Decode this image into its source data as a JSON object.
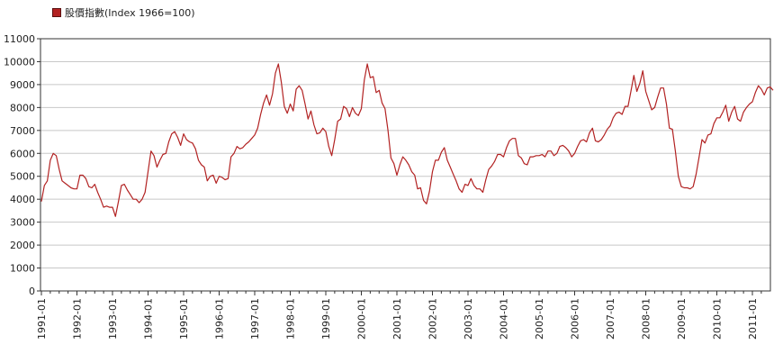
{
  "chart_data": {
    "type": "line",
    "legend": {
      "label": "股價指數(Index 1966=100)",
      "color": "#b22222",
      "position": "top-left"
    },
    "title": "",
    "xlabel": "",
    "ylabel": "",
    "ylim": [
      0,
      11000
    ],
    "y_ticks": [
      0,
      1000,
      2000,
      3000,
      4000,
      5000,
      6000,
      7000,
      8000,
      9000,
      10000,
      11000
    ],
    "x_range": [
      "1991-01",
      "2011-04"
    ],
    "x_tick_labels": [
      "1991-01",
      "1992-01",
      "1993-01",
      "1994-01",
      "1995-01",
      "1996-01",
      "1997-01",
      "1998-01",
      "1999-01",
      "2000-01",
      "2001-01",
      "2002-01",
      "2003-01",
      "2004-01",
      "2005-01",
      "2006-01",
      "2007-01",
      "2008-01",
      "2009-01",
      "2010-01",
      "2011-01"
    ],
    "grid": {
      "horizontal": true,
      "vertical": false
    },
    "series": [
      {
        "name": "股價指數(Index 1966=100)",
        "color": "#b22222",
        "points": [
          [
            "1991-01",
            3900
          ],
          [
            "1991-02",
            4600
          ],
          [
            "1991-03",
            4800
          ],
          [
            "1991-04",
            5700
          ],
          [
            "1991-05",
            6000
          ],
          [
            "1991-06",
            5900
          ],
          [
            "1991-07",
            5300
          ],
          [
            "1991-08",
            4800
          ],
          [
            "1991-09",
            4700
          ],
          [
            "1991-10",
            4600
          ],
          [
            "1991-11",
            4500
          ],
          [
            "1991-12",
            4450
          ],
          [
            "1992-01",
            4450
          ],
          [
            "1992-02",
            5050
          ],
          [
            "1992-03",
            5050
          ],
          [
            "1992-04",
            4900
          ],
          [
            "1992-05",
            4550
          ],
          [
            "1992-06",
            4500
          ],
          [
            "1992-07",
            4650
          ],
          [
            "1992-08",
            4300
          ],
          [
            "1992-09",
            4000
          ],
          [
            "1992-10",
            3650
          ],
          [
            "1992-11",
            3700
          ],
          [
            "1992-12",
            3650
          ],
          [
            "1993-01",
            3650
          ],
          [
            "1993-02",
            3250
          ],
          [
            "1993-03",
            3900
          ],
          [
            "1993-04",
            4600
          ],
          [
            "1993-05",
            4650
          ],
          [
            "1993-06",
            4400
          ],
          [
            "1993-07",
            4200
          ],
          [
            "1993-08",
            4000
          ],
          [
            "1993-09",
            4000
          ],
          [
            "1993-10",
            3850
          ],
          [
            "1993-11",
            4000
          ],
          [
            "1993-12",
            4300
          ],
          [
            "1994-01",
            5200
          ],
          [
            "1994-02",
            6100
          ],
          [
            "1994-03",
            5900
          ],
          [
            "1994-04",
            5400
          ],
          [
            "1994-05",
            5700
          ],
          [
            "1994-06",
            5950
          ],
          [
            "1994-07",
            6000
          ],
          [
            "1994-08",
            6500
          ],
          [
            "1994-09",
            6850
          ],
          [
            "1994-10",
            6950
          ],
          [
            "1994-11",
            6700
          ],
          [
            "1994-12",
            6350
          ],
          [
            "1995-01",
            6850
          ],
          [
            "1995-02",
            6600
          ],
          [
            "1995-03",
            6500
          ],
          [
            "1995-04",
            6450
          ],
          [
            "1995-05",
            6200
          ],
          [
            "1995-06",
            5700
          ],
          [
            "1995-07",
            5500
          ],
          [
            "1995-08",
            5400
          ],
          [
            "1995-09",
            4800
          ],
          [
            "1995-10",
            5000
          ],
          [
            "1995-11",
            5050
          ],
          [
            "1995-12",
            4700
          ],
          [
            "1996-01",
            5000
          ],
          [
            "1996-02",
            4950
          ],
          [
            "1996-03",
            4850
          ],
          [
            "1996-04",
            4900
          ],
          [
            "1996-05",
            5850
          ],
          [
            "1996-06",
            6000
          ],
          [
            "1996-07",
            6300
          ],
          [
            "1996-08",
            6200
          ],
          [
            "1996-09",
            6250
          ],
          [
            "1996-10",
            6400
          ],
          [
            "1996-11",
            6500
          ],
          [
            "1996-12",
            6650
          ],
          [
            "1997-01",
            6800
          ],
          [
            "1997-02",
            7100
          ],
          [
            "1997-03",
            7700
          ],
          [
            "1997-04",
            8200
          ],
          [
            "1997-05",
            8550
          ],
          [
            "1997-06",
            8100
          ],
          [
            "1997-07",
            8600
          ],
          [
            "1997-08",
            9500
          ],
          [
            "1997-09",
            9900
          ],
          [
            "1997-10",
            9100
          ],
          [
            "1997-11",
            8050
          ],
          [
            "1997-12",
            7750
          ],
          [
            "1998-01",
            8150
          ],
          [
            "1998-02",
            7850
          ],
          [
            "1998-03",
            8800
          ],
          [
            "1998-04",
            8950
          ],
          [
            "1998-05",
            8750
          ],
          [
            "1998-06",
            8150
          ],
          [
            "1998-07",
            7500
          ],
          [
            "1998-08",
            7850
          ],
          [
            "1998-09",
            7250
          ],
          [
            "1998-10",
            6850
          ],
          [
            "1998-11",
            6900
          ],
          [
            "1998-12",
            7100
          ],
          [
            "1999-01",
            6950
          ],
          [
            "1999-02",
            6300
          ],
          [
            "1999-03",
            5900
          ],
          [
            "1999-04",
            6600
          ],
          [
            "1999-05",
            7400
          ],
          [
            "1999-06",
            7500
          ],
          [
            "1999-07",
            8050
          ],
          [
            "1999-08",
            7950
          ],
          [
            "1999-09",
            7600
          ],
          [
            "1999-10",
            8000
          ],
          [
            "1999-11",
            7750
          ],
          [
            "1999-12",
            7650
          ],
          [
            "2000-01",
            7950
          ],
          [
            "2000-02",
            9200
          ],
          [
            "2000-03",
            9900
          ],
          [
            "2000-04",
            9300
          ],
          [
            "2000-05",
            9350
          ],
          [
            "2000-06",
            8650
          ],
          [
            "2000-07",
            8750
          ],
          [
            "2000-08",
            8200
          ],
          [
            "2000-09",
            7950
          ],
          [
            "2000-10",
            7000
          ],
          [
            "2000-11",
            5800
          ],
          [
            "2000-12",
            5550
          ],
          [
            "2001-01",
            5050
          ],
          [
            "2001-02",
            5500
          ],
          [
            "2001-03",
            5850
          ],
          [
            "2001-04",
            5700
          ],
          [
            "2001-05",
            5500
          ],
          [
            "2001-06",
            5200
          ],
          [
            "2001-07",
            5050
          ],
          [
            "2001-08",
            4450
          ],
          [
            "2001-09",
            4500
          ],
          [
            "2001-10",
            3950
          ],
          [
            "2001-11",
            3800
          ],
          [
            "2001-12",
            4350
          ],
          [
            "2002-01",
            5200
          ],
          [
            "2002-02",
            5700
          ],
          [
            "2002-03",
            5700
          ],
          [
            "2002-04",
            6050
          ],
          [
            "2002-05",
            6250
          ],
          [
            "2002-06",
            5700
          ],
          [
            "2002-07",
            5400
          ],
          [
            "2002-08",
            5100
          ],
          [
            "2002-09",
            4800
          ],
          [
            "2002-10",
            4450
          ],
          [
            "2002-11",
            4300
          ],
          [
            "2002-12",
            4650
          ],
          [
            "2003-01",
            4600
          ],
          [
            "2003-02",
            4900
          ],
          [
            "2003-03",
            4600
          ],
          [
            "2003-04",
            4450
          ],
          [
            "2003-05",
            4450
          ],
          [
            "2003-06",
            4300
          ],
          [
            "2003-07",
            4850
          ],
          [
            "2003-08",
            5300
          ],
          [
            "2003-09",
            5450
          ],
          [
            "2003-10",
            5650
          ],
          [
            "2003-11",
            5950
          ],
          [
            "2003-12",
            5950
          ],
          [
            "2004-01",
            5850
          ],
          [
            "2004-02",
            6250
          ],
          [
            "2004-03",
            6550
          ],
          [
            "2004-04",
            6650
          ],
          [
            "2004-05",
            6650
          ],
          [
            "2004-06",
            5900
          ],
          [
            "2004-07",
            5800
          ],
          [
            "2004-08",
            5550
          ],
          [
            "2004-09",
            5500
          ],
          [
            "2004-10",
            5850
          ],
          [
            "2004-11",
            5850
          ],
          [
            "2004-12",
            5900
          ],
          [
            "2005-01",
            5900
          ],
          [
            "2005-02",
            5950
          ],
          [
            "2005-03",
            5850
          ],
          [
            "2005-04",
            6100
          ],
          [
            "2005-05",
            6100
          ],
          [
            "2005-06",
            5900
          ],
          [
            "2005-07",
            6000
          ],
          [
            "2005-08",
            6300
          ],
          [
            "2005-09",
            6350
          ],
          [
            "2005-10",
            6250
          ],
          [
            "2005-11",
            6100
          ],
          [
            "2005-12",
            5850
          ],
          [
            "2006-01",
            6000
          ],
          [
            "2006-02",
            6300
          ],
          [
            "2006-03",
            6550
          ],
          [
            "2006-04",
            6600
          ],
          [
            "2006-05",
            6500
          ],
          [
            "2006-06",
            6900
          ],
          [
            "2006-07",
            7100
          ],
          [
            "2006-08",
            6550
          ],
          [
            "2006-09",
            6500
          ],
          [
            "2006-10",
            6600
          ],
          [
            "2006-11",
            6800
          ],
          [
            "2006-12",
            7050
          ],
          [
            "2007-01",
            7200
          ],
          [
            "2007-02",
            7550
          ],
          [
            "2007-03",
            7750
          ],
          [
            "2007-04",
            7800
          ],
          [
            "2007-05",
            7700
          ],
          [
            "2007-06",
            8050
          ],
          [
            "2007-07",
            8050
          ],
          [
            "2007-08",
            8700
          ],
          [
            "2007-09",
            9400
          ],
          [
            "2007-10",
            8700
          ],
          [
            "2007-11",
            9050
          ],
          [
            "2007-12",
            9600
          ],
          [
            "2008-01",
            8700
          ],
          [
            "2008-02",
            8300
          ],
          [
            "2008-03",
            7900
          ],
          [
            "2008-04",
            8000
          ],
          [
            "2008-05",
            8450
          ],
          [
            "2008-06",
            8850
          ],
          [
            "2008-07",
            8850
          ],
          [
            "2008-08",
            8150
          ],
          [
            "2008-09",
            7100
          ],
          [
            "2008-10",
            7050
          ],
          [
            "2008-11",
            6100
          ],
          [
            "2008-12",
            5000
          ],
          [
            "2009-01",
            4550
          ],
          [
            "2009-02",
            4500
          ],
          [
            "2009-03",
            4500
          ],
          [
            "2009-04",
            4450
          ],
          [
            "2009-05",
            4550
          ],
          [
            "2009-06",
            5100
          ],
          [
            "2009-07",
            5850
          ],
          [
            "2009-08",
            6600
          ],
          [
            "2009-09",
            6450
          ],
          [
            "2009-10",
            6800
          ],
          [
            "2009-11",
            6850
          ],
          [
            "2009-12",
            7300
          ],
          [
            "2010-01",
            7550
          ],
          [
            "2010-02",
            7550
          ],
          [
            "2010-03",
            7800
          ],
          [
            "2010-04",
            8100
          ],
          [
            "2010-05",
            7400
          ],
          [
            "2010-06",
            7800
          ],
          [
            "2010-07",
            8050
          ],
          [
            "2010-08",
            7500
          ],
          [
            "2010-09",
            7400
          ],
          [
            "2010-10",
            7800
          ],
          [
            "2010-11",
            8000
          ],
          [
            "2010-12",
            8150
          ],
          [
            "2011-01",
            8250
          ],
          [
            "2011-02",
            8650
          ],
          [
            "2011-03",
            8950
          ],
          [
            "2011-04",
            8800
          ],
          [
            "2011-05",
            8550
          ],
          [
            "2011-06",
            8850
          ],
          [
            "2011-07",
            8900
          ],
          [
            "2011-08",
            8750
          ]
        ]
      }
    ]
  }
}
